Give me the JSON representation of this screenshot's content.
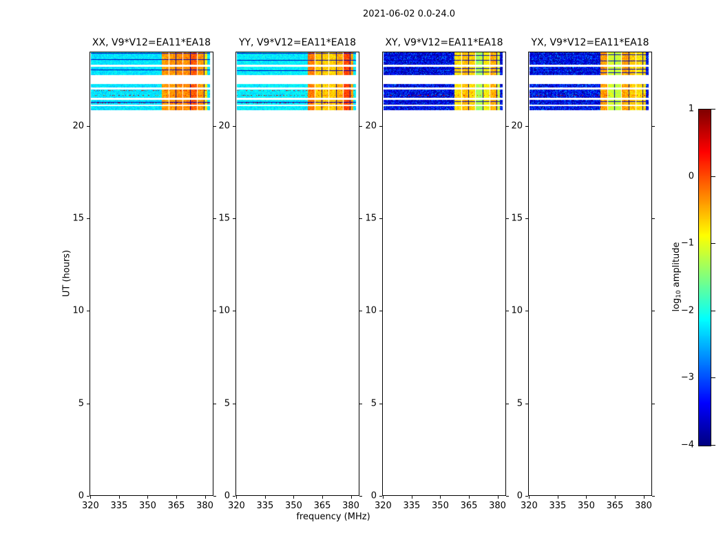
{
  "chart_data": {
    "type": "heatmap",
    "title": "2021-06-02 0.0-24.0",
    "xlabel": "frequency (MHz)",
    "ylabel": "UT (hours)",
    "xlim": [
      319.5,
      384.5
    ],
    "ylim": [
      0,
      24
    ],
    "xticks": [
      320,
      335,
      350,
      365,
      380
    ],
    "yticks": [
      0,
      5,
      10,
      15,
      20
    ],
    "grid": false,
    "data_freq_range": [
      320.0,
      383.0
    ],
    "data_time_range": [
      20.85,
      24.0
    ],
    "bands": [
      [
        24.0,
        23.34
      ],
      [
        23.22,
        22.78
      ],
      [
        22.3,
        22.1
      ],
      [
        21.99,
        21.55
      ],
      [
        21.44,
        21.18
      ],
      [
        21.1,
        20.85
      ]
    ],
    "hot_region": {
      "f_start": 357.5,
      "f_end": 381.5
    },
    "hot_block_edges": [
      357.5,
      361.2,
      364.9,
      368.6,
      372.3,
      376.0,
      379.7,
      381.5
    ],
    "panels": [
      {
        "pol": "XX",
        "title": "XX, V9*V12=EA11*EA18",
        "base_amp": -2.25,
        "base_noise": 0.3,
        "hot_amp": -0.45,
        "hot_noise": 0.3,
        "dark_lines": [
          23.97,
          23.63,
          23.05,
          21.3
        ],
        "red_lines": [
          21.95,
          21.69,
          21.28
        ],
        "seed": 11
      },
      {
        "pol": "YY",
        "title": "YY, V9*V12=EA11*EA18",
        "base_amp": -2.2,
        "base_noise": 0.3,
        "hot_amp": -0.4,
        "hot_noise": 0.3,
        "dark_lines": [
          23.97,
          23.6,
          23.02,
          21.3
        ],
        "red_lines": [
          21.95,
          21.69,
          21.28
        ],
        "seed": 22
      },
      {
        "pol": "XY",
        "title": "XY, V9*V12=EA11*EA18",
        "base_amp": -3.45,
        "base_noise": 0.9,
        "hot_amp": -0.85,
        "hot_noise": 0.35,
        "dark_lines": [
          23.85,
          23.6,
          23.15,
          22.95,
          21.35
        ],
        "red_lines": [
          21.7
        ],
        "seed": 33
      },
      {
        "pol": "YX",
        "title": "YX, V9*V12=EA11*EA18",
        "base_amp": -3.4,
        "base_noise": 0.9,
        "hot_amp": -0.8,
        "hot_noise": 0.35,
        "dark_lines": [
          23.9,
          23.55,
          23.1,
          22.9,
          21.35
        ],
        "red_lines": [
          21.7
        ],
        "seed": 44
      }
    ],
    "colorbar": {
      "label_prefix": "log",
      "label_sub": "10",
      "label_suffix": " amplitude",
      "ticks": [
        1,
        0,
        -1,
        -2,
        -3,
        -4
      ],
      "vmin": -4,
      "vmax": 1,
      "colormap": "jet"
    }
  }
}
